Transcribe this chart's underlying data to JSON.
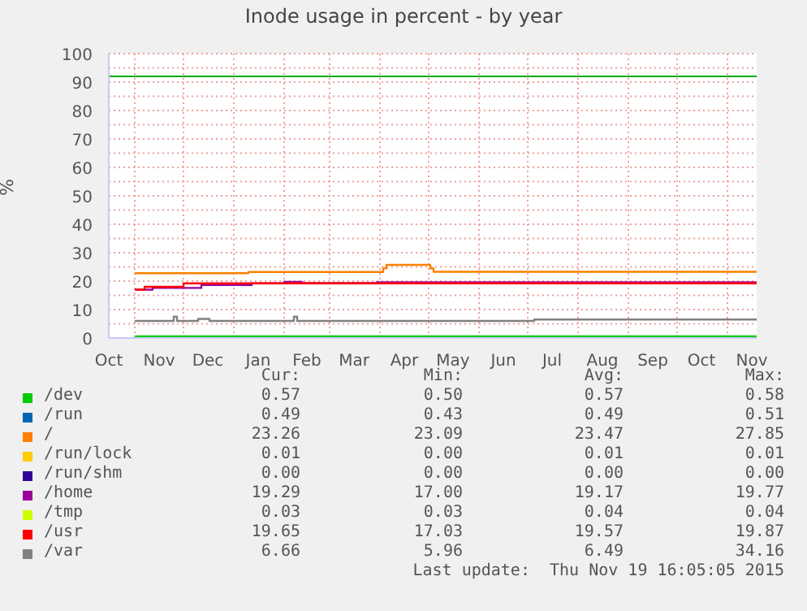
{
  "chart_data": {
    "type": "step",
    "title": "Inode usage in percent - by year",
    "ylabel": "%",
    "xlim": [
      "2014-10-16",
      "2015-11-19"
    ],
    "xticks": [
      {
        "value": "2014-10-16",
        "label": "Oct"
      },
      {
        "value": "2014-11-01",
        "label": null
      },
      {
        "value": "2014-11-16",
        "label": "Nov"
      },
      {
        "value": "2014-12-01",
        "label": null
      },
      {
        "value": "2014-12-16",
        "label": "Dec"
      },
      {
        "value": "2015-01-01",
        "label": null
      },
      {
        "value": "2015-01-16",
        "label": "Jan"
      },
      {
        "value": "2015-02-01",
        "label": null
      },
      {
        "value": "2015-02-15",
        "label": "Feb"
      },
      {
        "value": "2015-03-01",
        "label": null
      },
      {
        "value": "2015-03-16",
        "label": "Mar"
      },
      {
        "value": "2015-04-01",
        "label": null
      },
      {
        "value": "2015-04-16",
        "label": "Apr"
      },
      {
        "value": "2015-05-01",
        "label": null
      },
      {
        "value": "2015-05-16",
        "label": "May"
      },
      {
        "value": "2015-06-01",
        "label": null
      },
      {
        "value": "2015-06-16",
        "label": "Jun"
      },
      {
        "value": "2015-07-01",
        "label": null
      },
      {
        "value": "2015-07-16",
        "label": "Jul"
      },
      {
        "value": "2015-08-01",
        "label": null
      },
      {
        "value": "2015-08-16",
        "label": "Aug"
      },
      {
        "value": "2015-09-01",
        "label": null
      },
      {
        "value": "2015-09-16",
        "label": "Sep"
      },
      {
        "value": "2015-10-01",
        "label": null
      },
      {
        "value": "2015-10-16",
        "label": "Oct"
      },
      {
        "value": "2015-11-01",
        "label": null
      },
      {
        "value": "2015-11-16",
        "label": "Nov"
      }
    ],
    "ylim": [
      0,
      100
    ],
    "yticks": [
      0,
      {
        "value": 5,
        "label": null
      },
      10,
      {
        "value": 15,
        "label": null
      },
      20,
      {
        "value": 25,
        "label": null
      },
      30,
      {
        "value": 35,
        "label": null
      },
      40,
      {
        "value": 45,
        "label": null
      },
      50,
      {
        "value": 55,
        "label": null
      },
      60,
      {
        "value": 65,
        "label": null
      },
      70,
      {
        "value": 75,
        "label": null
      },
      80,
      {
        "value": 85,
        "label": null
      },
      90,
      {
        "value": 95,
        "label": null
      },
      100
    ],
    "grid": true,
    "legend": "bottom",
    "ref_lines": [
      {
        "axis": "y",
        "value": 92,
        "color": "#00aa00"
      }
    ],
    "series": [
      {
        "name": "/dev",
        "color": "#00cc00",
        "x": [
          "2014-11-01",
          "2015-11-19"
        ],
        "values": [
          0.6,
          0.6
        ]
      },
      {
        "name": "/run",
        "color": "#0066b3",
        "values": [
          null
        ]
      },
      {
        "name": "/",
        "color": "#ff8000",
        "x": [
          "2014-11-01",
          "2015-01-10",
          "2015-04-03",
          "2015-04-05",
          "2015-05-02",
          "2015-05-04",
          "2015-11-19"
        ],
        "values": [
          22.8,
          23.2,
          24.5,
          25.7,
          24.5,
          23.3,
          23.3
        ]
      },
      {
        "name": "/run/lock",
        "color": "#ffcc00",
        "values": [
          null
        ]
      },
      {
        "name": "/run/shm",
        "color": "#330099",
        "values": [
          null
        ]
      },
      {
        "name": "/home",
        "color": "#990099",
        "x": [
          "2014-11-01",
          "2014-11-12",
          "2014-12-12",
          "2015-01-12",
          "2015-02-01",
          "2015-02-12",
          "2015-03-30",
          "2015-11-19"
        ],
        "values": [
          17.0,
          17.6,
          18.6,
          19.2,
          19.7,
          19.3,
          19.6,
          19.3
        ]
      },
      {
        "name": "/tmp",
        "color": "#ccff00",
        "values": [
          null
        ]
      },
      {
        "name": "/usr",
        "color": "#ff0000",
        "x": [
          "2014-11-01",
          "2014-11-07",
          "2014-12-01",
          "2015-11-19"
        ],
        "values": [
          17.0,
          18.0,
          19.2,
          19.5
        ]
      },
      {
        "name": "/var",
        "color": "#808080",
        "x": [
          "2014-11-01",
          "2014-11-25",
          "2014-11-27",
          "2014-12-10",
          "2014-12-17",
          "2015-02-07",
          "2015-02-09",
          "2015-07-05",
          "2015-11-19"
        ],
        "values": [
          6.0,
          7.5,
          6.0,
          6.7,
          6.0,
          7.5,
          6.0,
          6.5,
          6.7
        ]
      }
    ],
    "annotations": [
      "Cur:",
      "Min:",
      "Avg:",
      "Max:",
      "0.57",
      "0.50",
      "0.57",
      "0.58",
      "0.49",
      "0.43",
      "0.49",
      "0.51",
      "23.26",
      "23.09",
      "23.47",
      "27.85",
      "0.01",
      "0.00",
      "0.01",
      "0.01",
      "0.00",
      "0.00",
      "0.00",
      "0.00",
      "19.29",
      "17.00",
      "19.17",
      "19.77",
      "0.03",
      "0.03",
      "0.04",
      "0.04",
      "19.65",
      "17.03",
      "19.57",
      "19.87",
      "6.66",
      "5.96",
      "6.49",
      "34.16",
      "Last update:  Thu Nov 19 16:05:05 2015"
    ]
  }
}
